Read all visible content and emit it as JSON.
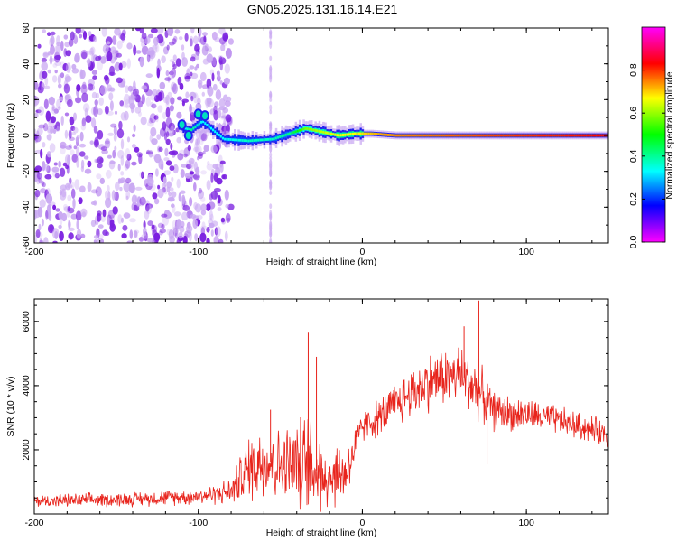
{
  "title": "GN05.2025.131.16.14.E21",
  "colors": {
    "line": "#e8241c",
    "band": "#2e9e2e",
    "noise": "#7a1fe0",
    "axis": "#000000"
  },
  "chart_data": [
    {
      "type": "heatmap",
      "title": "GN05.2025.131.16.14.E21",
      "xlabel": "Height of straight line (km)",
      "ylabel": "Frequency (Hz)",
      "colorbar_label": "Normalized spectral amplitude",
      "xlim": [
        -200,
        150
      ],
      "ylim": [
        -60,
        60
      ],
      "clim": [
        0,
        1
      ],
      "x_ticks": [
        -200,
        -100,
        0,
        100
      ],
      "y_ticks": [
        -60,
        -40,
        -20,
        0,
        20,
        40,
        60
      ],
      "colorbar_ticks": [
        0.0,
        0.2,
        0.4,
        0.6,
        0.8
      ],
      "colorbar_tick_labels": [
        "0.0",
        "0.2",
        "0.4",
        "0.6",
        "0.8"
      ],
      "colormap": "hsv-reversed (magenta-blue-cyan-green-yellow-red)",
      "ridge": {
        "x": [
          -112,
          -105,
          -98,
          -85,
          -70,
          -55,
          -45,
          -35,
          -25,
          -15,
          -5,
          5,
          20,
          50,
          80,
          110,
          150
        ],
        "freq": [
          5,
          3,
          8,
          -2,
          -3,
          -2,
          1,
          4,
          2,
          0,
          1,
          1,
          0,
          0,
          0,
          0,
          0
        ],
        "amplitude": [
          0.3,
          0.5,
          0.4,
          0.4,
          0.45,
          0.45,
          0.5,
          0.7,
          0.75,
          0.8,
          0.8,
          0.85,
          0.9,
          0.92,
          0.95,
          0.97,
          1.0
        ]
      },
      "noise_region": {
        "x_range": [
          -200,
          -80
        ],
        "freq_range": [
          -60,
          60
        ],
        "amplitude_range": [
          0.0,
          0.15
        ]
      }
    },
    {
      "type": "line",
      "xlabel": "Height of straight line (km)",
      "ylabel": "SNR (10 * v/v)",
      "xlim": [
        -200,
        150
      ],
      "ylim": [
        0,
        6700
      ],
      "x_ticks": [
        -200,
        -100,
        0,
        100
      ],
      "y_ticks": [
        2000,
        4000,
        6000
      ],
      "envelope": {
        "x": [
          -200,
          -150,
          -100,
          -80,
          -70,
          -60,
          -50,
          -40,
          -30,
          -20,
          -10,
          0,
          10,
          20,
          30,
          40,
          50,
          60,
          70,
          80,
          100,
          120,
          150
        ],
        "y": [
          400,
          450,
          550,
          700,
          1400,
          1700,
          1500,
          1500,
          1400,
          1200,
          1300,
          2700,
          3000,
          3400,
          3800,
          4100,
          4300,
          4300,
          3900,
          3200,
          3100,
          2900,
          2500
        ],
        "noise_amplitude": [
          200,
          220,
          250,
          400,
          1000,
          1300,
          1100,
          1500,
          1600,
          1100,
          900,
          500,
          600,
          700,
          800,
          900,
          900,
          1000,
          900,
          600,
          500,
          450,
          400
        ]
      },
      "peaks": [
        {
          "x": -33,
          "y": 5650
        },
        {
          "x": -56,
          "y": 3250
        },
        {
          "x": 71,
          "y": 6650
        },
        {
          "x": 62,
          "y": 5850
        },
        {
          "x": 76,
          "y": 1550
        },
        {
          "x": -28,
          "y": 4900
        }
      ]
    }
  ]
}
